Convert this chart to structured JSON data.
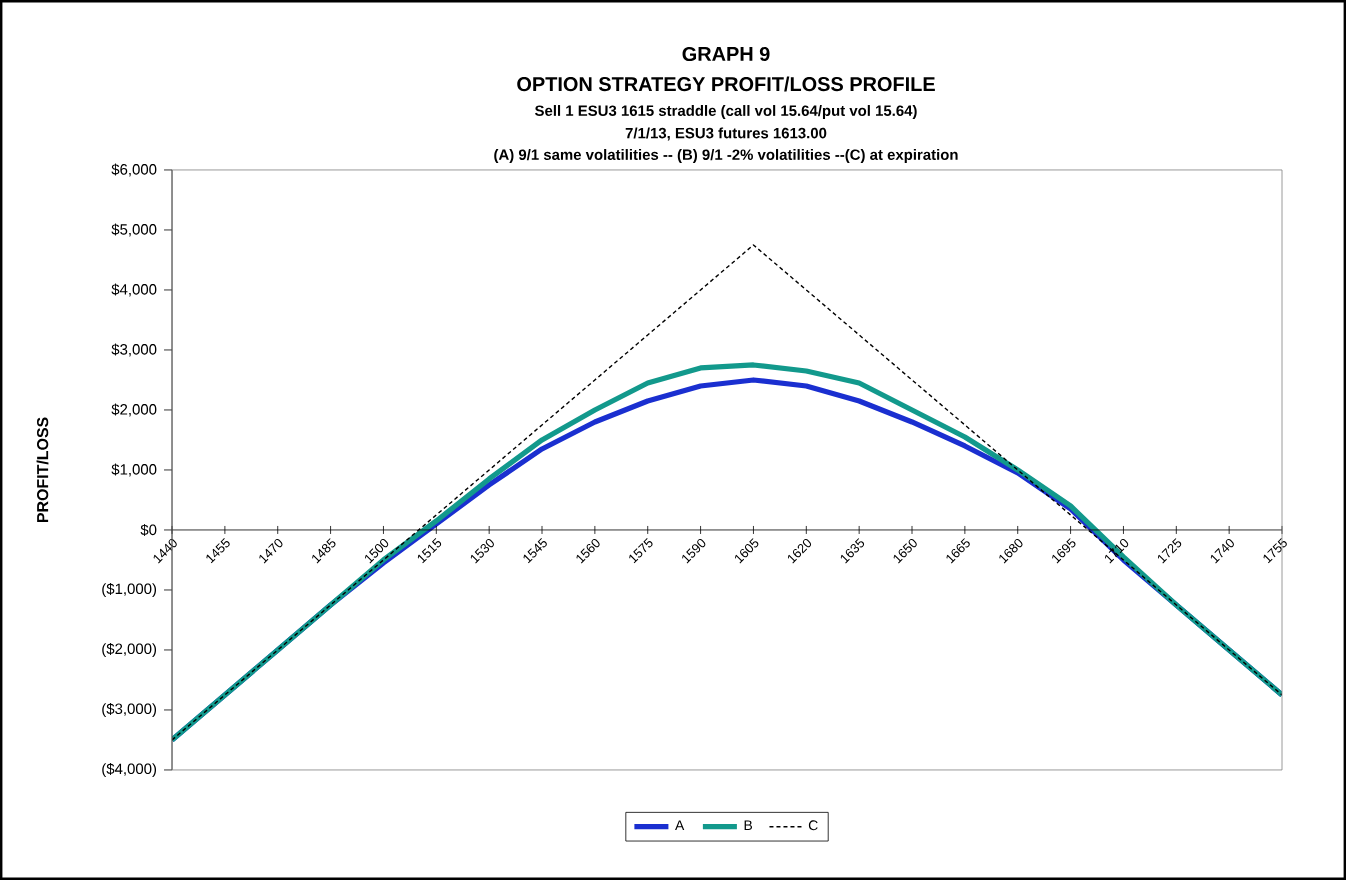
{
  "chart_data": {
    "type": "line",
    "title": "GRAPH 9",
    "subtitle": "OPTION STRATEGY PROFIT/LOSS PROFILE",
    "annotations": [
      "Sell 1 ESU3 1615 straddle (call vol 15.64/put vol 15.64)",
      "7/1/13, ESU3 futures 1613.00",
      "(A) 9/1 same volatilities -- (B) 9/1 -2% volatilities --(C) at expiration"
    ],
    "ylabel": "PROFIT/LOSS",
    "categories": [
      "1440",
      "1455",
      "1470",
      "1485",
      "1500",
      "1515",
      "1530",
      "1545",
      "1560",
      "1575",
      "1590",
      "1605",
      "1620",
      "1635",
      "1650",
      "1665",
      "1680",
      "1695",
      "1710",
      "1725",
      "1740",
      "1755"
    ],
    "series": [
      {
        "name": "A",
        "color": "#1a2fd0",
        "values": [
          -3500,
          -2750,
          -2000,
          -1250,
          -550,
          100,
          750,
          1350,
          1800,
          2150,
          2400,
          2500,
          2400,
          2150,
          1800,
          1400,
          950,
          350,
          -500,
          -1250,
          -2000,
          -2750
        ]
      },
      {
        "name": "B",
        "color": "#12998c",
        "values": [
          -3500,
          -2750,
          -2000,
          -1250,
          -500,
          150,
          850,
          1500,
          2000,
          2450,
          2700,
          2750,
          2650,
          2450,
          2000,
          1550,
          1000,
          400,
          -450,
          -1250,
          -2000,
          -2750
        ]
      },
      {
        "name": "C",
        "color": "#000000",
        "line_style": "dashed",
        "values": [
          -3500,
          -2750,
          -2000,
          -1250,
          -500,
          250,
          1000,
          1750,
          2500,
          3250,
          4000,
          4750,
          4000,
          3250,
          2500,
          1750,
          1000,
          250,
          -500,
          -1250,
          -2000,
          -2750
        ]
      }
    ],
    "ylim": [
      -4000,
      6000
    ],
    "yticks": [
      {
        "value": -4000,
        "label": "($4,000)"
      },
      {
        "value": -3000,
        "label": "($3,000)"
      },
      {
        "value": -2000,
        "label": "($2,000)"
      },
      {
        "value": -1000,
        "label": "($1,000)"
      },
      {
        "value": 0,
        "label": "$0"
      },
      {
        "value": 1000,
        "label": "$1,000"
      },
      {
        "value": 2000,
        "label": "$2,000"
      },
      {
        "value": 3000,
        "label": "$3,000"
      },
      {
        "value": 4000,
        "label": "$4,000"
      },
      {
        "value": 5000,
        "label": "$5,000"
      },
      {
        "value": 6000,
        "label": "$6,000"
      }
    ],
    "grid": false,
    "legend": "bottom"
  }
}
